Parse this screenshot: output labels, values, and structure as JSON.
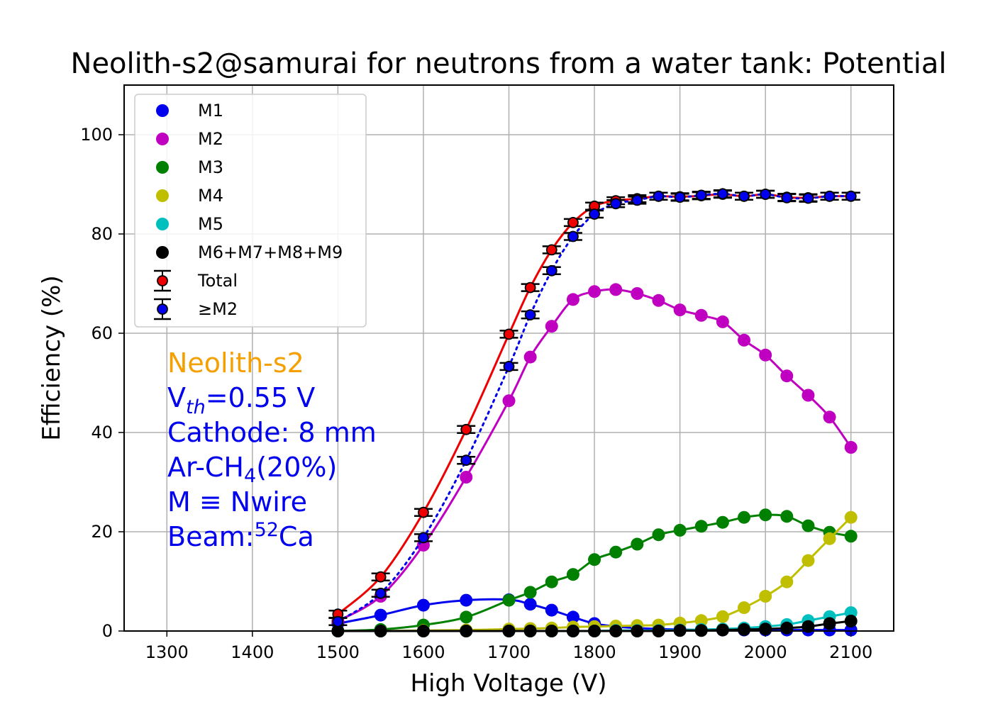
{
  "chart_data": {
    "type": "line",
    "title": "Neolith-s2@samurai for neutrons from a water tank: Potential",
    "xlabel": "High Voltage (V)",
    "ylabel": "Efficiency (%)",
    "xlim": [
      1250,
      2150
    ],
    "ylim": [
      0,
      110
    ],
    "xticks": [
      1300,
      1400,
      1500,
      1600,
      1700,
      1800,
      1900,
      2000,
      2100
    ],
    "yticks": [
      0,
      20,
      40,
      60,
      80,
      100
    ],
    "grid": true,
    "legend_position": "top-left",
    "x": [
      1500,
      1550,
      1600,
      1650,
      1700,
      1725,
      1750,
      1775,
      1800,
      1825,
      1850,
      1875,
      1900,
      1925,
      1950,
      1975,
      2000,
      2025,
      2050,
      2075,
      2100
    ],
    "series": [
      {
        "name": "M1",
        "color": "#0000ee",
        "line": "solid",
        "errorbars": false,
        "values": [
          1.5,
          3.2,
          5.2,
          6.2,
          6.3,
          5.4,
          4.2,
          2.8,
          1.5,
          0.9,
          0.6,
          0.4,
          0.3,
          0.2,
          0.2,
          0.2,
          0.2,
          0.2,
          0.2,
          0.2,
          0.2
        ]
      },
      {
        "name": "M2",
        "color": "#c000c0",
        "line": "solid",
        "errorbars": false,
        "values": [
          2.0,
          7.0,
          17.3,
          31.0,
          46.4,
          55.2,
          61.4,
          66.8,
          68.4,
          68.8,
          68.0,
          66.6,
          64.7,
          63.6,
          62.3,
          58.6,
          55.6,
          51.4,
          47.5,
          43.1,
          37.0
        ]
      },
      {
        "name": "M3",
        "color": "#008000",
        "line": "solid",
        "errorbars": false,
        "values": [
          0.0,
          0.3,
          1.2,
          2.8,
          6.2,
          7.8,
          9.9,
          11.4,
          14.4,
          15.9,
          17.5,
          19.4,
          20.3,
          21.1,
          21.9,
          22.9,
          23.4,
          23.1,
          21.2,
          19.9,
          19.1
        ]
      },
      {
        "name": "M4",
        "color": "#bfbf00",
        "line": "solid",
        "errorbars": false,
        "values": [
          0.0,
          0.0,
          0.1,
          0.2,
          0.4,
          0.5,
          0.6,
          0.8,
          0.9,
          1.0,
          1.1,
          1.2,
          1.6,
          2.1,
          2.9,
          4.7,
          7.0,
          9.9,
          14.2,
          18.6,
          22.9
        ]
      },
      {
        "name": "M5",
        "color": "#00bfbf",
        "line": "solid",
        "errorbars": false,
        "values": [
          0.0,
          0.0,
          0.0,
          0.0,
          0.0,
          0.0,
          0.0,
          0.0,
          0.0,
          0.1,
          0.1,
          0.1,
          0.2,
          0.3,
          0.4,
          0.6,
          0.9,
          1.3,
          2.1,
          2.9,
          3.7
        ]
      },
      {
        "name": "M6+M7+M8+M9",
        "color": "#000000",
        "line": "solid",
        "errorbars": false,
        "values": [
          0.0,
          0.0,
          0.0,
          0.0,
          0.0,
          0.0,
          0.0,
          0.0,
          0.0,
          0.0,
          0.0,
          0.0,
          0.1,
          0.1,
          0.2,
          0.3,
          0.4,
          0.6,
          0.9,
          1.5,
          2.0
        ]
      },
      {
        "name": "Total",
        "color": "#ee0000",
        "line": "solid",
        "errorbars": true,
        "values": [
          3.4,
          10.9,
          23.9,
          40.6,
          59.8,
          69.2,
          76.8,
          82.3,
          85.6,
          86.7,
          87.1,
          87.6,
          87.5,
          87.7,
          88.0,
          87.6,
          88.0,
          87.4,
          87.3,
          87.6,
          87.6
        ]
      },
      {
        "name": "≥M2",
        "color": "#0000ee",
        "line": "dotted",
        "errorbars": true,
        "values": [
          1.9,
          7.6,
          18.8,
          34.4,
          53.3,
          63.7,
          72.6,
          79.5,
          84.0,
          86.1,
          86.8,
          87.6,
          87.4,
          87.8,
          88.1,
          87.6,
          88.0,
          87.3,
          87.2,
          87.6,
          87.6
        ]
      }
    ]
  },
  "annotation": {
    "header": "Neolith-s2",
    "header_color": "#f5a000",
    "color": "#0000ee",
    "vth_main": "V",
    "vth_sub": "th",
    "vth_rest": "=0.55 V",
    "cathode": "Cathode: 8 mm",
    "gas_pre": "Ar-CH",
    "gas_sub": "4",
    "gas_post": "(20%)",
    "mdef": "M ≡ Nwire",
    "beam_pre": "Beam:",
    "beam_sup": "52",
    "beam_post": "Ca"
  }
}
